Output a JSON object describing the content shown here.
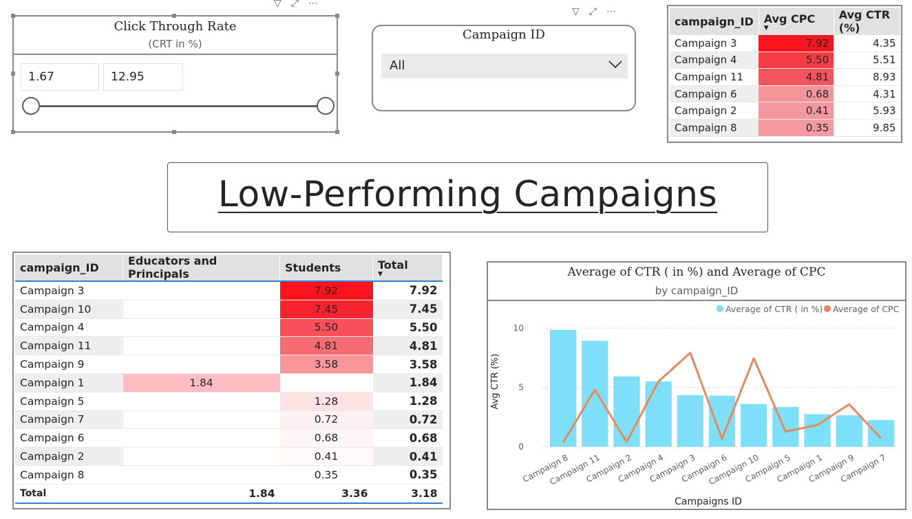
{
  "slicer_ctr": {
    "title": "Click Through Rate",
    "subtitle": "(CRT in %)",
    "min_value": "1.67",
    "max_value": "12.95",
    "header_icons": [
      "filter-icon",
      "focus-mode-icon",
      "more-options-icon"
    ]
  },
  "slicer_campaign": {
    "title": "Campaign ID",
    "selected": "All",
    "header_icons": [
      "filter-icon",
      "focus-mode-icon",
      "more-options-icon"
    ]
  },
  "top_table": {
    "headers": [
      "campaign_ID",
      "Avg CPC",
      "Avg CTR (%)"
    ],
    "rows": [
      {
        "campaign": "Campaign 3",
        "cpc": "7.92",
        "ctr": "4.35",
        "cpc_color": "#f9141e"
      },
      {
        "campaign": "Campaign 4",
        "cpc": "5.50",
        "ctr": "5.51",
        "cpc_color": "#f73c46"
      },
      {
        "campaign": "Campaign 11",
        "cpc": "4.81",
        "ctr": "8.93",
        "cpc_color": "#f5545c"
      },
      {
        "campaign": "Campaign 6",
        "cpc": "0.68",
        "ctr": "4.31",
        "cpc_color": "#f4959a"
      },
      {
        "campaign": "Campaign 2",
        "cpc": "0.41",
        "ctr": "5.93",
        "cpc_color": "#f4989d"
      },
      {
        "campaign": "Campaign 8",
        "cpc": "0.35",
        "ctr": "9.85",
        "cpc_color": "#f49aa0"
      }
    ]
  },
  "banner": {
    "title": "Low-Performing Campaigns "
  },
  "bottom_table": {
    "headers": [
      "campaign_ID",
      "Educators and Principals",
      "Students",
      "Total"
    ],
    "rows": [
      {
        "campaign": "Campaign 3",
        "edu": "",
        "stu": "7.92",
        "total": "7.92",
        "edu_color": "",
        "stu_color": "#f9141e"
      },
      {
        "campaign": "Campaign 10",
        "edu": "",
        "stu": "7.45",
        "total": "7.45",
        "edu_color": "",
        "stu_color": "#f8242d"
      },
      {
        "campaign": "Campaign 4",
        "edu": "",
        "stu": "5.50",
        "total": "5.50",
        "edu_color": "",
        "stu_color": "#f8505a"
      },
      {
        "campaign": "Campaign 11",
        "edu": "",
        "stu": "4.81",
        "total": "4.81",
        "edu_color": "",
        "stu_color": "#f76b73"
      },
      {
        "campaign": "Campaign 9",
        "edu": "",
        "stu": "3.58",
        "total": "3.58",
        "edu_color": "",
        "stu_color": "#f7959a"
      },
      {
        "campaign": "Campaign 1",
        "edu": "1.84",
        "stu": "",
        "total": "1.84",
        "edu_color": "#ffbcc1",
        "stu_color": ""
      },
      {
        "campaign": "Campaign 5",
        "edu": "",
        "stu": "1.28",
        "total": "1.28",
        "edu_color": "",
        "stu_color": "#fde2e4"
      },
      {
        "campaign": "Campaign 7",
        "edu": "",
        "stu": "0.72",
        "total": "0.72",
        "edu_color": "",
        "stu_color": "#fdf2f3"
      },
      {
        "campaign": "Campaign 6",
        "edu": "",
        "stu": "0.68",
        "total": "0.68",
        "edu_color": "",
        "stu_color": "#fdf5f6"
      },
      {
        "campaign": "Campaign 2",
        "edu": "",
        "stu": "0.41",
        "total": "0.41",
        "edu_color": "",
        "stu_color": "#fefafa"
      },
      {
        "campaign": "Campaign 8",
        "edu": "",
        "stu": "0.35",
        "total": "0.35",
        "edu_color": "",
        "stu_color": "#ffffff"
      }
    ],
    "total_row": {
      "label": "Total",
      "edu": "1.84",
      "stu": "3.36",
      "total": "3.18"
    }
  },
  "chart_data": {
    "type": "bar",
    "title": "Average of CTR ( in %) and Average of CPC",
    "subtitle": "by campaign_ID",
    "xlabel": "Campaigns ID",
    "ylabel": "Avg CTR (%)",
    "ylim": [
      0,
      11
    ],
    "yticks": [
      "0",
      "5",
      "10"
    ],
    "grid": true,
    "legend_position": "top-right",
    "categories": [
      "Campaign 8",
      "Campaign 11",
      "Campaign 2",
      "Campaign 4",
      "Campaign 3",
      "Campaign 6",
      "Campaign 10",
      "Campaign 5",
      "Campaign 1",
      "Campaign 9",
      "Campaign 7"
    ],
    "series": [
      {
        "name": "Average of CTR ( in %)",
        "type": "bar",
        "color": "#7ddff8",
        "values": [
          9.85,
          8.93,
          5.93,
          5.51,
          4.35,
          4.31,
          3.6,
          3.35,
          2.75,
          2.65,
          2.25
        ]
      },
      {
        "name": "Average of CPC",
        "type": "line",
        "color": "#e58a5f",
        "values": [
          0.35,
          4.81,
          0.41,
          5.5,
          7.92,
          0.68,
          7.45,
          1.28,
          1.84,
          3.58,
          0.72
        ]
      }
    ]
  }
}
